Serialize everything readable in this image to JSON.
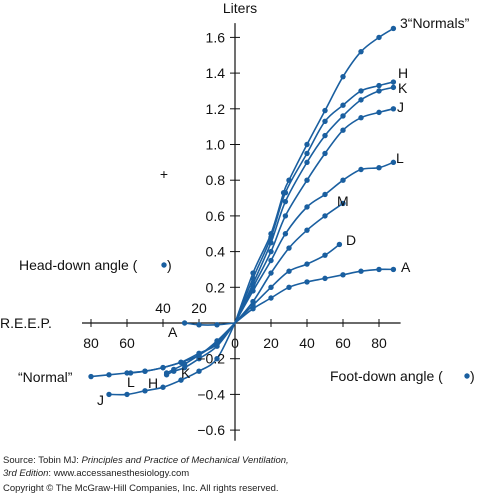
{
  "chart_data": {
    "type": "line",
    "ylabel": "Liters",
    "y_ticks": [
      {
        "v": 1.6,
        "t": "1.6"
      },
      {
        "v": 1.4,
        "t": "1.4"
      },
      {
        "v": 1.2,
        "t": "1.2"
      },
      {
        "v": 1.0,
        "t": "1.0"
      },
      {
        "v": 0.8,
        "t": "0.8"
      },
      {
        "v": 0.6,
        "t": "0.6"
      },
      {
        "v": 0.4,
        "t": "0.4"
      },
      {
        "v": 0.2,
        "t": "0.2"
      },
      {
        "v": -0.2,
        "t": "−0.2"
      },
      {
        "v": -0.4,
        "t": "−0.4"
      },
      {
        "v": -0.6,
        "t": "−0.6"
      }
    ],
    "x_ticks_right": [
      {
        "v": 20,
        "t": "20"
      },
      {
        "v": 40,
        "t": "40"
      },
      {
        "v": 60,
        "t": "60"
      },
      {
        "v": 80,
        "t": "80"
      }
    ],
    "x_ticks_left": [
      {
        "v": 80,
        "t": "80"
      },
      {
        "v": 60,
        "t": "60"
      },
      {
        "v": 40,
        "t": "40"
      },
      {
        "v": 20,
        "t": "20"
      }
    ],
    "origin_label": "0",
    "plus_label": "+",
    "left_axis_label": "R.E.E.P.",
    "head_down_label": "Head-down angle (",
    "head_down_label_end": ")",
    "foot_down_label": "Foot-down angle (",
    "foot_down_label_end": ")",
    "series_foot_down": [
      {
        "name": "3“Normals”",
        "points": [
          [
            0,
            0
          ],
          [
            10,
            0.28
          ],
          [
            20,
            0.5
          ],
          [
            27,
            0.73
          ],
          [
            30,
            0.8
          ],
          [
            40,
            1.0
          ],
          [
            50,
            1.19
          ],
          [
            60,
            1.38
          ],
          [
            70,
            1.52
          ],
          [
            80,
            1.6
          ],
          [
            88,
            1.65
          ]
        ]
      },
      {
        "name": "H",
        "points": [
          [
            0,
            0
          ],
          [
            10,
            0.25
          ],
          [
            20,
            0.48
          ],
          [
            28,
            0.73
          ],
          [
            40,
            0.95
          ],
          [
            50,
            1.13
          ],
          [
            60,
            1.22
          ],
          [
            70,
            1.3
          ],
          [
            80,
            1.33
          ],
          [
            88,
            1.35
          ]
        ]
      },
      {
        "name": "K",
        "points": [
          [
            0,
            0
          ],
          [
            10,
            0.22
          ],
          [
            20,
            0.45
          ],
          [
            28,
            0.68
          ],
          [
            40,
            0.9
          ],
          [
            50,
            1.05
          ],
          [
            60,
            1.16
          ],
          [
            70,
            1.25
          ],
          [
            80,
            1.3
          ],
          [
            88,
            1.32
          ]
        ]
      },
      {
        "name": "J",
        "points": [
          [
            0,
            0
          ],
          [
            10,
            0.2
          ],
          [
            20,
            0.4
          ],
          [
            28,
            0.6
          ],
          [
            40,
            0.8
          ],
          [
            50,
            0.95
          ],
          [
            60,
            1.08
          ],
          [
            70,
            1.15
          ],
          [
            80,
            1.18
          ],
          [
            88,
            1.2
          ]
        ]
      },
      {
        "name": "L",
        "points": [
          [
            0,
            0
          ],
          [
            10,
            0.18
          ],
          [
            20,
            0.35
          ],
          [
            28,
            0.5
          ],
          [
            40,
            0.65
          ],
          [
            50,
            0.72
          ],
          [
            60,
            0.8
          ],
          [
            70,
            0.86
          ],
          [
            80,
            0.87
          ],
          [
            88,
            0.9
          ]
        ]
      },
      {
        "name": "M",
        "points": [
          [
            0,
            0
          ],
          [
            10,
            0.12
          ],
          [
            20,
            0.28
          ],
          [
            30,
            0.42
          ],
          [
            40,
            0.52
          ],
          [
            50,
            0.6
          ],
          [
            60,
            0.67
          ]
        ]
      },
      {
        "name": "D",
        "points": [
          [
            0,
            0
          ],
          [
            10,
            0.1
          ],
          [
            20,
            0.2
          ],
          [
            30,
            0.29
          ],
          [
            40,
            0.33
          ],
          [
            50,
            0.38
          ],
          [
            58,
            0.44
          ]
        ]
      },
      {
        "name": "A",
        "points": [
          [
            0,
            0
          ],
          [
            10,
            0.08
          ],
          [
            20,
            0.14
          ],
          [
            30,
            0.2
          ],
          [
            40,
            0.23
          ],
          [
            50,
            0.25
          ],
          [
            60,
            0.27
          ],
          [
            70,
            0.29
          ],
          [
            80,
            0.3
          ],
          [
            88,
            0.3
          ]
        ]
      }
    ],
    "series_head_down": [
      {
        "name": "A",
        "points": [
          [
            0,
            0
          ],
          [
            10,
            -0.01
          ],
          [
            20,
            -0.01
          ],
          [
            28,
            0
          ]
        ]
      },
      {
        "name": "“Normal”",
        "points": [
          [
            0,
            0
          ],
          [
            10,
            -0.1
          ],
          [
            20,
            -0.18
          ],
          [
            30,
            -0.22
          ],
          [
            40,
            -0.25
          ],
          [
            50,
            -0.27
          ],
          [
            60,
            -0.28
          ],
          [
            70,
            -0.29
          ],
          [
            80,
            -0.3
          ]
        ]
      },
      {
        "name": "L",
        "points": [
          [
            0,
            0
          ],
          [
            10,
            -0.12
          ],
          [
            20,
            -0.17
          ],
          [
            30,
            -0.22
          ],
          [
            40,
            -0.25
          ],
          [
            50,
            -0.27
          ],
          [
            58,
            -0.28
          ]
        ]
      },
      {
        "name": "H",
        "points": [
          [
            0,
            0
          ],
          [
            10,
            -0.13
          ],
          [
            20,
            -0.2
          ],
          [
            28,
            -0.25
          ],
          [
            34,
            -0.27
          ],
          [
            38,
            -0.29
          ]
        ]
      },
      {
        "name": "K",
        "points": [
          [
            0,
            0
          ],
          [
            10,
            -0.11
          ],
          [
            20,
            -0.18
          ],
          [
            28,
            -0.23
          ],
          [
            34,
            -0.26
          ],
          [
            38,
            -0.28
          ]
        ]
      },
      {
        "name": "J",
        "points": [
          [
            0,
            0
          ],
          [
            10,
            -0.2
          ],
          [
            20,
            -0.27
          ],
          [
            30,
            -0.32
          ],
          [
            40,
            -0.36
          ],
          [
            50,
            -0.38
          ],
          [
            60,
            -0.4
          ],
          [
            70,
            -0.4
          ]
        ]
      }
    ]
  },
  "footer": {
    "source_prefix": "Source: Tobin MJ: ",
    "source_title": "Principles and Practice of Mechanical Ventilation,",
    "source_edition": "3rd Edition",
    "source_suffix": ": www.accessanesthesiology.com",
    "copyright": "Copyright © The McGraw-Hill Companies, Inc. All rights reserved."
  }
}
